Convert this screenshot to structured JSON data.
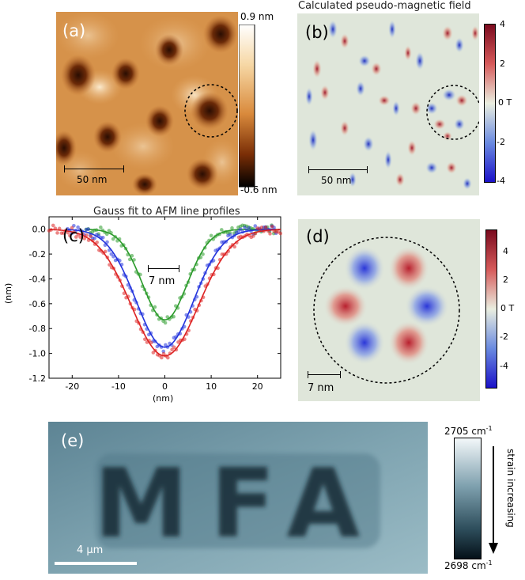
{
  "panel_a": {
    "label": "(a)",
    "scale_bar": "50 nm",
    "colorbar_max": "0.9 nm",
    "colorbar_min": "-0.6 nm"
  },
  "panel_b": {
    "label": "(b)",
    "title": "Calculated pseudo-magnetic field",
    "scale_bar": "50 nm",
    "colorbar_ticks": [
      "4",
      "2",
      "0 T",
      "-2",
      "-4"
    ]
  },
  "panel_c": {
    "label": "(c)",
    "scale_bar": "7 nm"
  },
  "panel_d": {
    "label": "(d)",
    "scale_bar": "7 nm",
    "colorbar_ticks": [
      "4",
      "2",
      "0 T",
      "-2",
      "-4"
    ]
  },
  "panel_e": {
    "label": "(e)",
    "text": "MFA",
    "scale_bar": "4 μm",
    "colorbar_top": "2705 cm",
    "colorbar_bottom": "2698 cm",
    "colorbar_unit_exponent": "-1",
    "arrow_label": "strain increasing"
  },
  "chart_data": {
    "type": "line",
    "title": "Gauss fit to AFM line profiles",
    "xlabel": "(nm)",
    "ylabel": "(nm)",
    "xlim": [
      -25,
      25
    ],
    "ylim": [
      -1.2,
      0.1
    ],
    "xticks": [
      -20,
      -10,
      0,
      10,
      20
    ],
    "yticks": [
      0.0,
      -0.2,
      -0.4,
      -0.6,
      -0.8,
      -1.0,
      -1.2
    ],
    "series": [
      {
        "name": "green",
        "color": "#2a9a2a",
        "amplitude": -0.73,
        "center": 0,
        "sigma": 4.8,
        "x_range": [
          -17,
          24
        ]
      },
      {
        "name": "blue",
        "color": "#2233dd",
        "amplitude": -0.95,
        "center": 0,
        "sigma": 6.2,
        "x_range": [
          -21,
          24
        ]
      },
      {
        "name": "red",
        "color": "#dd2222",
        "amplitude": -1.02,
        "center": 0,
        "sigma": 7.2,
        "x_range": [
          -25,
          25
        ]
      }
    ]
  }
}
